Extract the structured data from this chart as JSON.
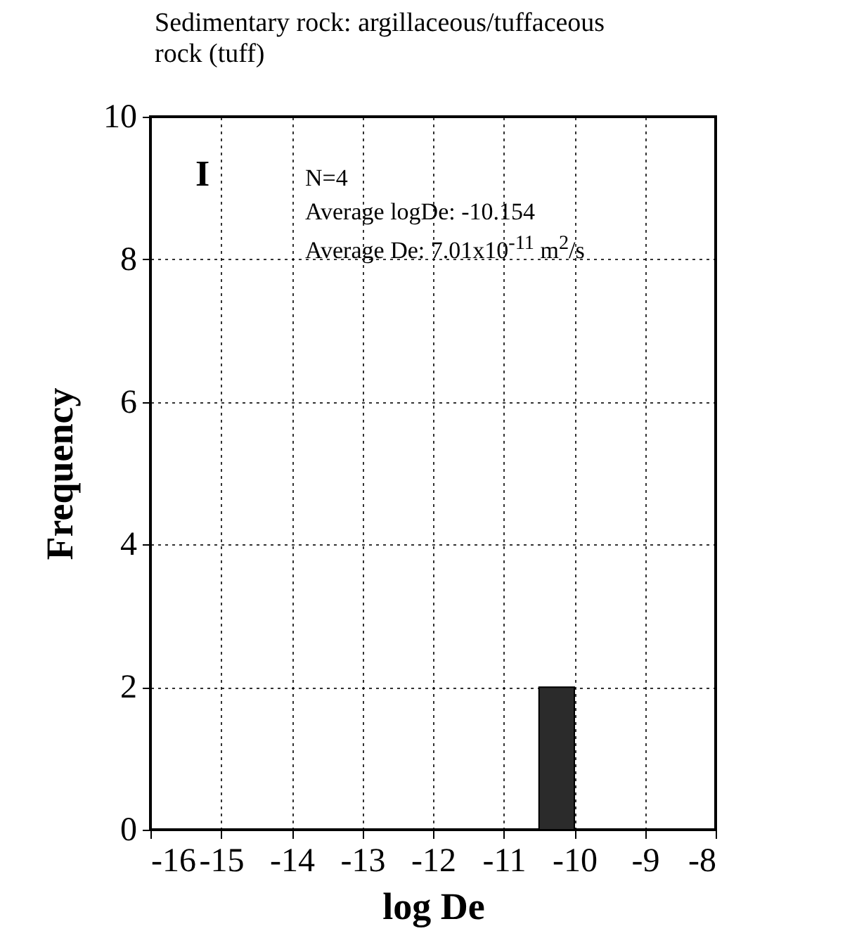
{
  "chart_data": {
    "type": "histogram",
    "title": "Sedimentary rock: argillaceous/tuffaceous rock (tuff)",
    "xlabel": "log De",
    "ylabel": "Frequency",
    "bins": [
      -10.5,
      -10
    ],
    "values": [
      2
    ],
    "color": "#2b2b2b",
    "xlim": [
      -16,
      -8
    ],
    "xticks": [
      -16,
      -15,
      -14,
      -13,
      -12,
      -11,
      -10,
      -9,
      -8
    ],
    "ylim": [
      0,
      10
    ],
    "yticks": [
      0,
      2,
      4,
      6,
      8,
      10
    ],
    "grid": true,
    "annotations": [
      "I",
      "N=4",
      "Average logDe: -10.154",
      "Average De: 7.01x10$^{-11}$ m$^{2}$/s"
    ]
  }
}
